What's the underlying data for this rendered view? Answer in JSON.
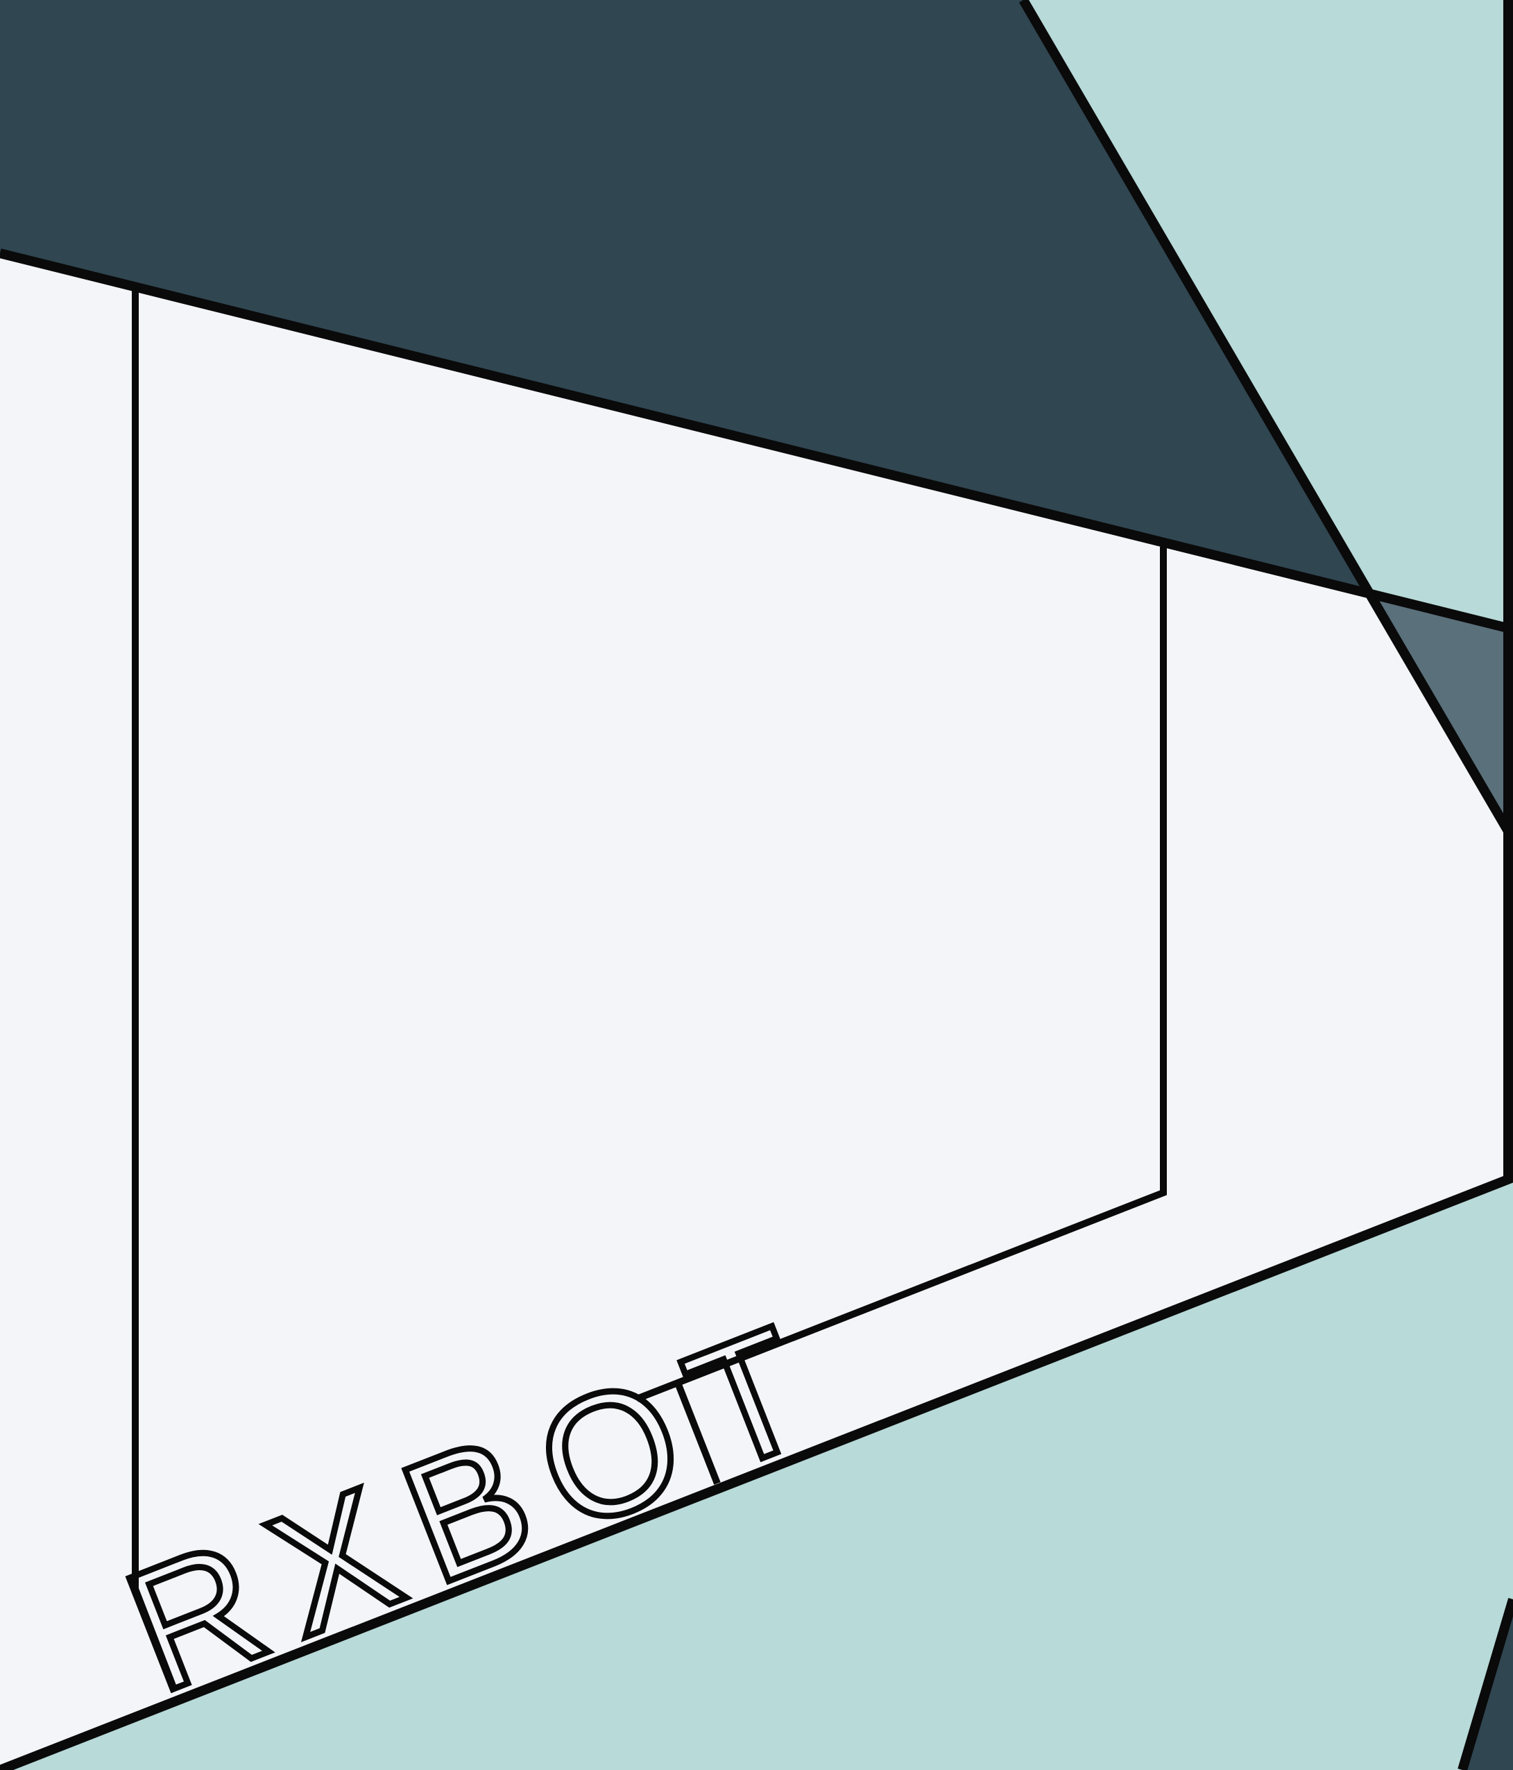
{
  "artwork": {
    "logo_text": "RXBOT",
    "logo_letters": [
      "R",
      "X",
      "B",
      "O",
      "T"
    ]
  },
  "palette": {
    "background": "#f3f5f9",
    "dark_navy": "#304651",
    "slate": "#5a707b",
    "mint": "#b8dad9",
    "stroke": "#0a0a0a"
  }
}
